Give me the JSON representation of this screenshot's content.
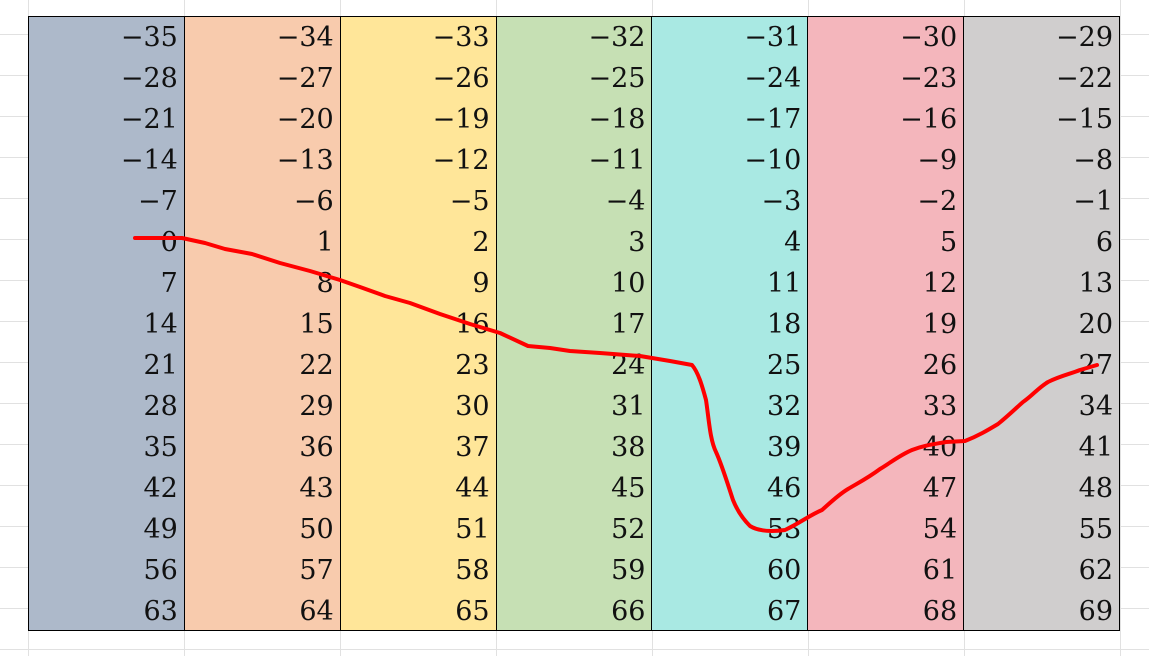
{
  "grid": {
    "columns": [
      {
        "color": "#adb9ca",
        "values": [
          "−35",
          "−28",
          "−21",
          "−14",
          "−7",
          "0",
          "7",
          "14",
          "21",
          "28",
          "35",
          "42",
          "49",
          "56",
          "63"
        ]
      },
      {
        "color": "#f8cbad",
        "values": [
          "−34",
          "−27",
          "−20",
          "−13",
          "−6",
          "1",
          "8",
          "15",
          "22",
          "29",
          "36",
          "43",
          "50",
          "57",
          "64"
        ]
      },
      {
        "color": "#ffe699",
        "values": [
          "−33",
          "−26",
          "−19",
          "−12",
          "−5",
          "2",
          "9",
          "16",
          "23",
          "30",
          "37",
          "44",
          "51",
          "58",
          "65"
        ]
      },
      {
        "color": "#c6e0b4",
        "values": [
          "−32",
          "−25",
          "−18",
          "−11",
          "−4",
          "3",
          "10",
          "17",
          "24",
          "31",
          "38",
          "45",
          "52",
          "59",
          "66"
        ]
      },
      {
        "color": "#a9e9e3",
        "values": [
          "−31",
          "−24",
          "−17",
          "−10",
          "−3",
          "4",
          "11",
          "18",
          "25",
          "32",
          "39",
          "46",
          "53",
          "60",
          "67"
        ]
      },
      {
        "color": "#f4b6bc",
        "values": [
          "−30",
          "−23",
          "−16",
          "−9",
          "−2",
          "5",
          "12",
          "19",
          "26",
          "33",
          "40",
          "47",
          "54",
          "61",
          "68"
        ]
      },
      {
        "color": "#d0cece",
        "values": [
          "−29",
          "−22",
          "−15",
          "−8",
          "−1",
          "6",
          "13",
          "20",
          "27",
          "34",
          "41",
          "48",
          "55",
          "62",
          "69"
        ]
      }
    ]
  },
  "annotation": {
    "color": "#ff0000",
    "kind": "hand-drawn-stroke"
  }
}
